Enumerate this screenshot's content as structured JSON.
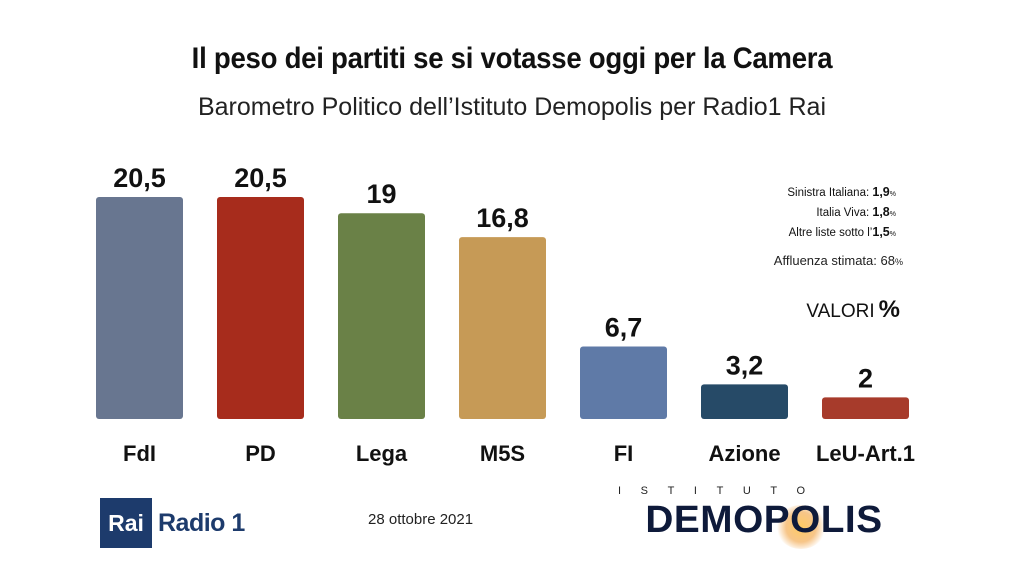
{
  "header": {
    "title": "Il peso dei partiti se si votasse oggi per la Camera",
    "subtitle": "Barometro Politico dell’Istituto Demopolis per Radio1 Rai"
  },
  "chart_data": {
    "type": "bar",
    "title": "Il peso dei partiti se si votasse oggi per la Camera",
    "subtitle": "Barometro Politico dell’Istituto Demopolis per Radio1 Rai",
    "categories": [
      "FdI",
      "PD",
      "Lega",
      "M5S",
      "FI",
      "Azione",
      "LeU-Art.1"
    ],
    "values": [
      20.5,
      20.5,
      19,
      16.8,
      6.7,
      3.2,
      2
    ],
    "value_labels": [
      "20,5",
      "20,5",
      "19",
      "16,8",
      "6,7",
      "3,2",
      "2"
    ],
    "colors": [
      "#687690",
      "#a72c1c",
      "#6a8147",
      "#c69a56",
      "#5f7aa7",
      "#264a67",
      "#a73b2b"
    ],
    "xlabel": "",
    "ylabel": "",
    "ylim": [
      0,
      20.5
    ],
    "grid": false
  },
  "notes": {
    "si_label": "Sinistra Italiana:",
    "si_value": "1,9",
    "si_unit": "%",
    "iv_label": "Italia Viva:",
    "iv_value": "1,8",
    "iv_unit": "%",
    "al_label": "Altre liste sotto l’",
    "al_value": "1,5",
    "al_unit": "%",
    "affluenza_label": "Affluenza stimata:",
    "affluenza_value": "68",
    "affluenza_unit": "%"
  },
  "valori": {
    "label": "VALORI",
    "unit": "%"
  },
  "footer": {
    "date": "28 ottobre 2021",
    "rai_box": "Rai",
    "rai_radio": "Radio 1",
    "demopolis_top": "ISTITUTO",
    "demopolis_main": "DEMOPOLIS"
  }
}
